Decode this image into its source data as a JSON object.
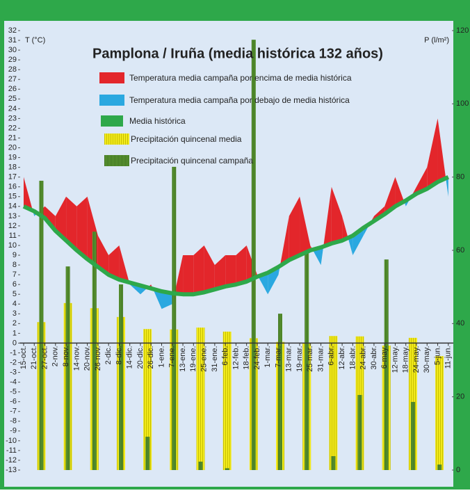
{
  "chart_data": {
    "type": "temperature-precipitation",
    "title": "Pamplona / Iruña (media histórica 132 años)",
    "y_label": "T (°C)",
    "y2_label": "P (l/m²)",
    "categories": [
      "15-oct.",
      "21-oct.",
      "27-oct.",
      "2-nov.",
      "8-nov.",
      "14-nov.",
      "20-nov.",
      "26-nov.",
      "2-dic.",
      "8-dic.",
      "14-dic.",
      "20-dic.",
      "26-dic.",
      "1-ene.",
      "7-ene.",
      "13-ene.",
      "19-ene.",
      "25-ene.",
      "31-ene.",
      "6-feb.",
      "12-feb.",
      "18-feb.",
      "24-feb.",
      "1-mar.",
      "7-mar.",
      "13-mar.",
      "19-mar.",
      "25-mar.",
      "31-mar.",
      "6-abr.",
      "12-abr.",
      "18-abr.",
      "24-abr.",
      "30-abr.",
      "6-may.",
      "12-may.",
      "18-may.",
      "24-may.",
      "30-may.",
      "5-jun.",
      "11-jun."
    ],
    "temperature": {
      "values": [
        17,
        13,
        14,
        13,
        15,
        14,
        15,
        11,
        9,
        10,
        6,
        5,
        6,
        3.5,
        4,
        9,
        9,
        10,
        8,
        9,
        9,
        10,
        7,
        5,
        7,
        13,
        15,
        10,
        8,
        16,
        13,
        9,
        11,
        13,
        14,
        17,
        14,
        16,
        18,
        23,
        15
      ]
    },
    "above": {
      "name": "Temperatura media campaña por encima de media histórica",
      "color": "#e3262b"
    },
    "below": {
      "name": "Temperatura media campaña por debajo de media histórica",
      "color": "#2aa8e0"
    },
    "historic": {
      "name": "Media histórica",
      "color": "#2ea84a",
      "values": [
        14,
        13.5,
        12.8,
        11.5,
        10.5,
        9.5,
        8.6,
        7.8,
        7,
        6.5,
        6.2,
        5.9,
        5.6,
        5.3,
        5.1,
        5,
        5,
        5.2,
        5.5,
        5.8,
        6,
        6.3,
        6.8,
        7.2,
        7.8,
        8.5,
        9,
        9.5,
        9.8,
        10.2,
        10.5,
        11,
        11.8,
        12.5,
        13.2,
        14,
        14.6,
        15.3,
        15.8,
        16.5,
        17
      ]
    },
    "precip_mean": {
      "name": "Precipitación quincenal media",
      "color": "#f2ea1c",
      "axis": "y2",
      "values": [
        40.4,
        45.6,
        44.2,
        41.8,
        38.5,
        38.4,
        38.9,
        37.8,
        36,
        35,
        34.7,
        36.6,
        36.5,
        34,
        36.1,
        31.1
      ]
    },
    "precip_campaign": {
      "name": "Precipitación quincenal campaña",
      "color": "#5f9e35",
      "axis": "y2",
      "values": [
        79,
        55.6,
        65.1,
        50.7,
        9.1,
        82.8,
        2.3,
        0.5,
        117.5,
        42.7,
        60,
        3.8,
        20.5,
        57.5,
        18.6,
        1.5
      ]
    },
    "ylim": [
      -13,
      32
    ],
    "yticks": [
      -13,
      -12,
      -11,
      -10,
      -9,
      -8,
      -7,
      -6,
      -5,
      -4,
      -3,
      -2,
      -1,
      0,
      1,
      2,
      3,
      4,
      5,
      6,
      7,
      8,
      9,
      10,
      11,
      12,
      13,
      14,
      15,
      16,
      17,
      18,
      19,
      20,
      21,
      22,
      23,
      24,
      25,
      26,
      27,
      28,
      29,
      30,
      31,
      32
    ],
    "y2lim": [
      0,
      120
    ],
    "y2ticks": [
      0,
      20,
      40,
      60,
      80,
      100,
      120
    ]
  }
}
